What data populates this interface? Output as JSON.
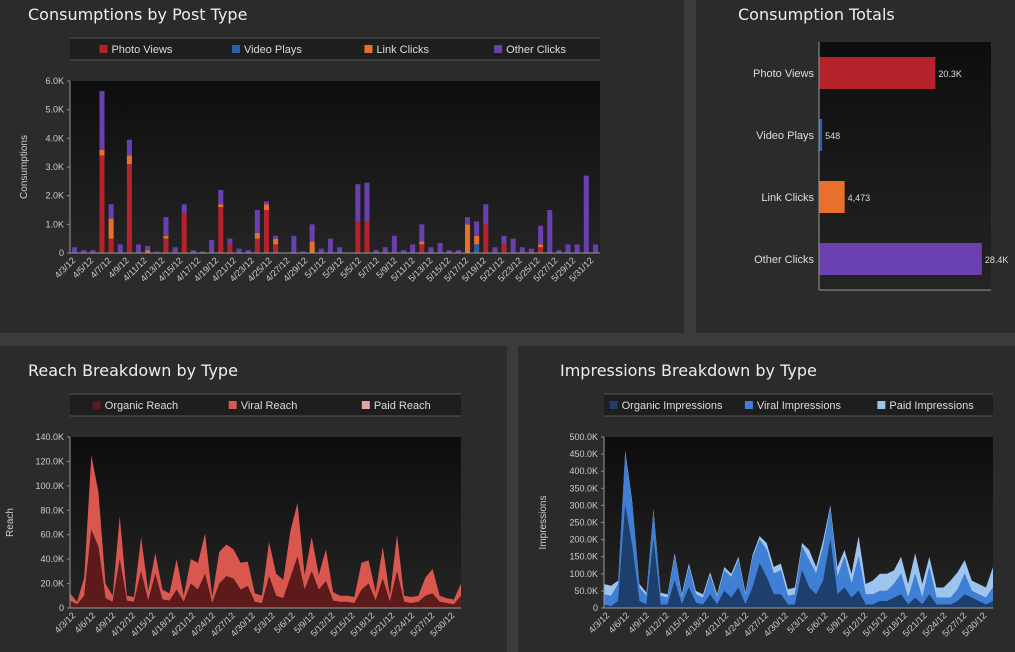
{
  "panels": {
    "consumptions": {
      "title": "Consumptions by Post Type"
    },
    "totals": {
      "title": "Consumption Totals"
    },
    "reach": {
      "title": "Reach Breakdown by Type"
    },
    "impressions": {
      "title": "Impressions Breakdown by Type"
    }
  },
  "chart_data": [
    {
      "id": "consumptions",
      "type": "bar",
      "stacked": true,
      "title": "Consumptions by Post Type",
      "xlabel": "",
      "ylabel": "Consumptions",
      "ylim": [
        0,
        6000
      ],
      "y_ticks": [
        "0",
        "1.0K",
        "2.0K",
        "3.0K",
        "4.0K",
        "5.0K",
        "6.0K"
      ],
      "legend_position": "top",
      "x_tick_labels": [
        "4/3/12",
        "4/5/12",
        "4/7/12",
        "4/9/12",
        "4/11/12",
        "4/13/12",
        "4/15/12",
        "4/17/12",
        "4/19/12",
        "4/21/12",
        "4/23/12",
        "4/25/12",
        "4/27/12",
        "4/29/12",
        "5/1/12",
        "5/3/12",
        "5/5/12",
        "5/7/12",
        "5/9/12",
        "5/11/12",
        "5/13/12",
        "5/15/12",
        "5/17/12",
        "5/19/12",
        "5/21/12",
        "5/23/12",
        "5/25/12",
        "5/27/12",
        "5/29/12",
        "5/31/12"
      ],
      "series": [
        {
          "name": "Photo Views",
          "color": "#b4232c",
          "values": [
            0,
            0,
            0,
            3400,
            500,
            0,
            3100,
            0,
            0,
            0,
            500,
            0,
            1400,
            0,
            0,
            0,
            1600,
            300,
            0,
            0,
            500,
            1500,
            300,
            0,
            0,
            0,
            0,
            0,
            0,
            0,
            0,
            1100,
            1100,
            0,
            0,
            0,
            0,
            0,
            300,
            0,
            0,
            0,
            0,
            0,
            0,
            1000,
            0,
            300,
            0,
            0,
            0,
            200,
            0,
            0,
            0,
            0,
            0,
            0
          ]
        },
        {
          "name": "Video Plays",
          "color": "#2b5fae",
          "values": [
            0,
            0,
            0,
            0,
            0,
            0,
            0,
            0,
            0,
            0,
            0,
            0,
            0,
            0,
            0,
            0,
            0,
            0,
            0,
            0,
            0,
            0,
            0,
            0,
            0,
            0,
            0,
            0,
            0,
            0,
            0,
            0,
            0,
            0,
            0,
            0,
            0,
            0,
            0,
            0,
            0,
            0,
            0,
            0,
            300,
            0,
            0,
            0,
            0,
            0,
            0,
            0,
            0,
            0,
            0,
            0,
            0,
            0
          ]
        },
        {
          "name": "Link Clicks",
          "color": "#e8702a",
          "values": [
            0,
            0,
            0,
            200,
            700,
            0,
            300,
            0,
            100,
            0,
            100,
            0,
            0,
            0,
            0,
            0,
            100,
            0,
            0,
            0,
            200,
            200,
            200,
            0,
            0,
            0,
            400,
            0,
            0,
            0,
            0,
            0,
            0,
            0,
            0,
            0,
            0,
            0,
            100,
            0,
            0,
            0,
            0,
            1000,
            300,
            0,
            0,
            0,
            0,
            0,
            0,
            100,
            0,
            0,
            0,
            0,
            0,
            0
          ]
        },
        {
          "name": "Other Clicks",
          "color": "#6a3fb0",
          "values": [
            200,
            100,
            100,
            2050,
            500,
            300,
            550,
            300,
            150,
            50,
            650,
            200,
            300,
            100,
            50,
            450,
            500,
            200,
            150,
            100,
            800,
            100,
            100,
            0,
            600,
            50,
            600,
            150,
            500,
            200,
            0,
            1300,
            1350,
            100,
            200,
            600,
            100,
            300,
            600,
            200,
            350,
            100,
            100,
            250,
            500,
            700,
            200,
            300,
            500,
            200,
            150,
            650,
            1500,
            100,
            300,
            300,
            2700,
            300
          ]
        }
      ]
    },
    {
      "id": "totals",
      "type": "bar",
      "orientation": "horizontal",
      "title": "Consumption Totals",
      "categories": [
        "Photo Views",
        "Video Plays",
        "Link Clicks",
        "Other Clicks"
      ],
      "values": [
        20300,
        548,
        4473,
        28400
      ],
      "value_labels": [
        "20.3K",
        "548",
        "4,473",
        "28.4K"
      ],
      "colors": [
        "#b4232c",
        "#2b5fae",
        "#e8702a",
        "#6a3fb0"
      ],
      "xlim": [
        0,
        30000
      ]
    },
    {
      "id": "reach",
      "type": "area",
      "stacked": true,
      "title": "Reach Breakdown by Type",
      "xlabel": "",
      "ylabel": "Reach",
      "ylim": [
        0,
        140000
      ],
      "y_ticks": [
        "0",
        "20.0K",
        "40.0K",
        "60.0K",
        "80.0K",
        "100.0K",
        "120.0K",
        "140.0K"
      ],
      "legend_position": "top",
      "x_tick_labels": [
        "4/3/12",
        "4/6/12",
        "4/9/12",
        "4/12/12",
        "4/15/12",
        "4/18/12",
        "4/21/12",
        "4/24/12",
        "4/27/12",
        "4/30/12",
        "5/3/12",
        "5/6/12",
        "5/9/12",
        "5/12/12",
        "5/15/12",
        "5/18/12",
        "5/21/12",
        "5/24/12",
        "5/27/12",
        "5/30/12"
      ],
      "series": [
        {
          "name": "Organic Reach",
          "color": "#5c1a1a",
          "values": [
            6000,
            3000,
            10000,
            64000,
            50000,
            8000,
            5000,
            40000,
            6000,
            5000,
            30000,
            6000,
            28000,
            7000,
            6000,
            15000,
            5000,
            20000,
            15000,
            28000,
            4000,
            20000,
            26000,
            24000,
            15000,
            18000,
            5000,
            4000,
            26000,
            10000,
            8000,
            25000,
            42000,
            15000,
            30000,
            15000,
            22000,
            6000,
            5000,
            5000,
            4000,
            15000,
            20000,
            6000,
            24000,
            5000,
            30000,
            5000,
            4000,
            5000,
            10000,
            12000,
            5000,
            4000,
            3000,
            10000
          ]
        },
        {
          "name": "Viral Reach",
          "color": "#d9574f",
          "values": [
            6000,
            2000,
            15000,
            61000,
            45000,
            12000,
            5000,
            35000,
            4000,
            4000,
            28000,
            8000,
            17000,
            8000,
            6000,
            25000,
            5000,
            20000,
            22000,
            33000,
            5000,
            26000,
            26000,
            24000,
            22000,
            20000,
            7000,
            6000,
            28000,
            18000,
            15000,
            38000,
            44000,
            12000,
            28000,
            12000,
            26000,
            7000,
            5000,
            5000,
            5000,
            22000,
            19000,
            7000,
            26000,
            5000,
            30000,
            5000,
            5000,
            5000,
            15000,
            20000,
            5000,
            4000,
            4000,
            10000
          ]
        },
        {
          "name": "Paid Reach",
          "color": "#e8a3a0",
          "values": [
            0,
            0,
            0,
            0,
            0,
            0,
            0,
            0,
            0,
            0,
            0,
            0,
            0,
            0,
            0,
            0,
            0,
            0,
            0,
            0,
            0,
            0,
            0,
            0,
            0,
            0,
            0,
            0,
            0,
            0,
            0,
            0,
            0,
            0,
            0,
            0,
            0,
            0,
            0,
            0,
            0,
            0,
            0,
            0,
            0,
            0,
            0,
            0,
            0,
            0,
            0,
            0,
            0,
            0,
            0,
            0
          ]
        }
      ]
    },
    {
      "id": "impressions",
      "type": "area",
      "stacked": true,
      "title": "Impressions Breakdown by Type",
      "xlabel": "",
      "ylabel": "Impressions",
      "ylim": [
        0,
        500000
      ],
      "y_ticks": [
        "0",
        "50.0K",
        "100.0K",
        "150.0K",
        "200.0K",
        "250.0K",
        "300.0K",
        "350.0K",
        "400.0K",
        "450.0K",
        "500.0K"
      ],
      "legend_position": "top",
      "x_tick_labels": [
        "4/3/12",
        "4/6/12",
        "4/9/12",
        "4/12/12",
        "4/15/12",
        "4/18/12",
        "4/21/12",
        "4/24/12",
        "4/27/12",
        "4/30/12",
        "5/3/12",
        "5/6/12",
        "5/9/12",
        "5/12/12",
        "5/15/12",
        "5/18/12",
        "5/21/12",
        "5/24/12",
        "5/27/12",
        "5/30/12"
      ],
      "series": [
        {
          "name": "Organic Impressions",
          "color": "#1d3f6e",
          "values": [
            10000,
            5000,
            20000,
            300000,
            180000,
            20000,
            10000,
            200000,
            10000,
            10000,
            80000,
            10000,
            60000,
            15000,
            10000,
            40000,
            10000,
            50000,
            30000,
            60000,
            10000,
            60000,
            130000,
            90000,
            40000,
            40000,
            10000,
            10000,
            110000,
            60000,
            40000,
            80000,
            200000,
            40000,
            60000,
            30000,
            50000,
            10000,
            10000,
            20000,
            20000,
            30000,
            40000,
            10000,
            30000,
            10000,
            40000,
            10000,
            10000,
            10000,
            20000,
            40000,
            30000,
            20000,
            10000,
            20000
          ]
        },
        {
          "name": "Viral Impressions",
          "color": "#3f7fd6",
          "values": [
            30000,
            30000,
            50000,
            150000,
            120000,
            40000,
            25000,
            80000,
            25000,
            20000,
            70000,
            20000,
            60000,
            25000,
            20000,
            55000,
            20000,
            60000,
            60000,
            80000,
            25000,
            85000,
            70000,
            80000,
            60000,
            70000,
            25000,
            30000,
            70000,
            80000,
            60000,
            100000,
            90000,
            50000,
            90000,
            40000,
            100000,
            30000,
            30000,
            30000,
            30000,
            40000,
            60000,
            20000,
            70000,
            20000,
            80000,
            20000,
            20000,
            20000,
            35000,
            60000,
            20000,
            20000,
            20000,
            40000
          ]
        },
        {
          "name": "Paid Impressions",
          "color": "#9dc3ef",
          "values": [
            30000,
            30000,
            10000,
            10000,
            10000,
            10000,
            10000,
            10000,
            10000,
            10000,
            10000,
            10000,
            10000,
            10000,
            10000,
            10000,
            10000,
            10000,
            10000,
            10000,
            10000,
            10000,
            10000,
            20000,
            20000,
            20000,
            20000,
            20000,
            10000,
            30000,
            20000,
            20000,
            10000,
            30000,
            20000,
            30000,
            60000,
            30000,
            40000,
            50000,
            50000,
            40000,
            50000,
            40000,
            60000,
            40000,
            30000,
            30000,
            30000,
            50000,
            50000,
            40000,
            30000,
            30000,
            30000,
            60000
          ]
        }
      ]
    }
  ]
}
